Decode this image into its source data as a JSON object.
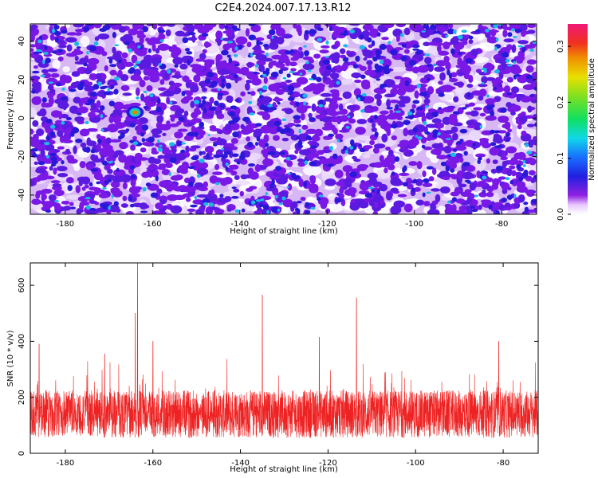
{
  "title": "C2E4.2024.007.17.13.R12",
  "chart_data": [
    {
      "type": "heatmap",
      "xlabel": "Height of straight line (km)",
      "ylabel": "Frequency (Hz)",
      "xlim": [
        -188,
        -72
      ],
      "ylim": [
        -50,
        49
      ],
      "xticks": [
        -180,
        -160,
        -140,
        -120,
        -100,
        -80
      ],
      "yticks": [
        -40,
        -20,
        0,
        20,
        40
      ],
      "colorbar": {
        "label": "Normalized spectral amplitude",
        "range": [
          0.0,
          0.34
        ],
        "ticks": [
          0.0,
          0.1,
          0.2,
          0.3
        ]
      },
      "hotspot": {
        "x": -164,
        "y": 3,
        "value": 0.26
      },
      "colors": {
        "low": "#ffffff",
        "mid1": "#c9a0f0",
        "mid2": "#7a18e6",
        "mid3": "#2818d8",
        "high1": "#19b8e6",
        "high2": "#2ee05a",
        "peak": "#f07a00"
      }
    },
    {
      "type": "line",
      "xlabel": "Height of straight line (km)",
      "ylabel": "SNR (10 * v/v)",
      "xlim": [
        -188,
        -72
      ],
      "ylim": [
        0,
        680
      ],
      "xticks": [
        -180,
        -160,
        -140,
        -120,
        -100,
        -80
      ],
      "yticks": [
        0,
        200,
        400,
        600
      ],
      "baseline": 140,
      "spikes": [
        {
          "x": -186,
          "y": 390
        },
        {
          "x": -164,
          "y": 500
        },
        {
          "x": -163.5,
          "y": 680
        },
        {
          "x": -135,
          "y": 565
        },
        {
          "x": -113.5,
          "y": 555
        },
        {
          "x": -122,
          "y": 415
        },
        {
          "x": -81,
          "y": 400
        },
        {
          "x": -160,
          "y": 400
        },
        {
          "x": -171,
          "y": 355
        }
      ],
      "color": "#ee2222"
    }
  ]
}
